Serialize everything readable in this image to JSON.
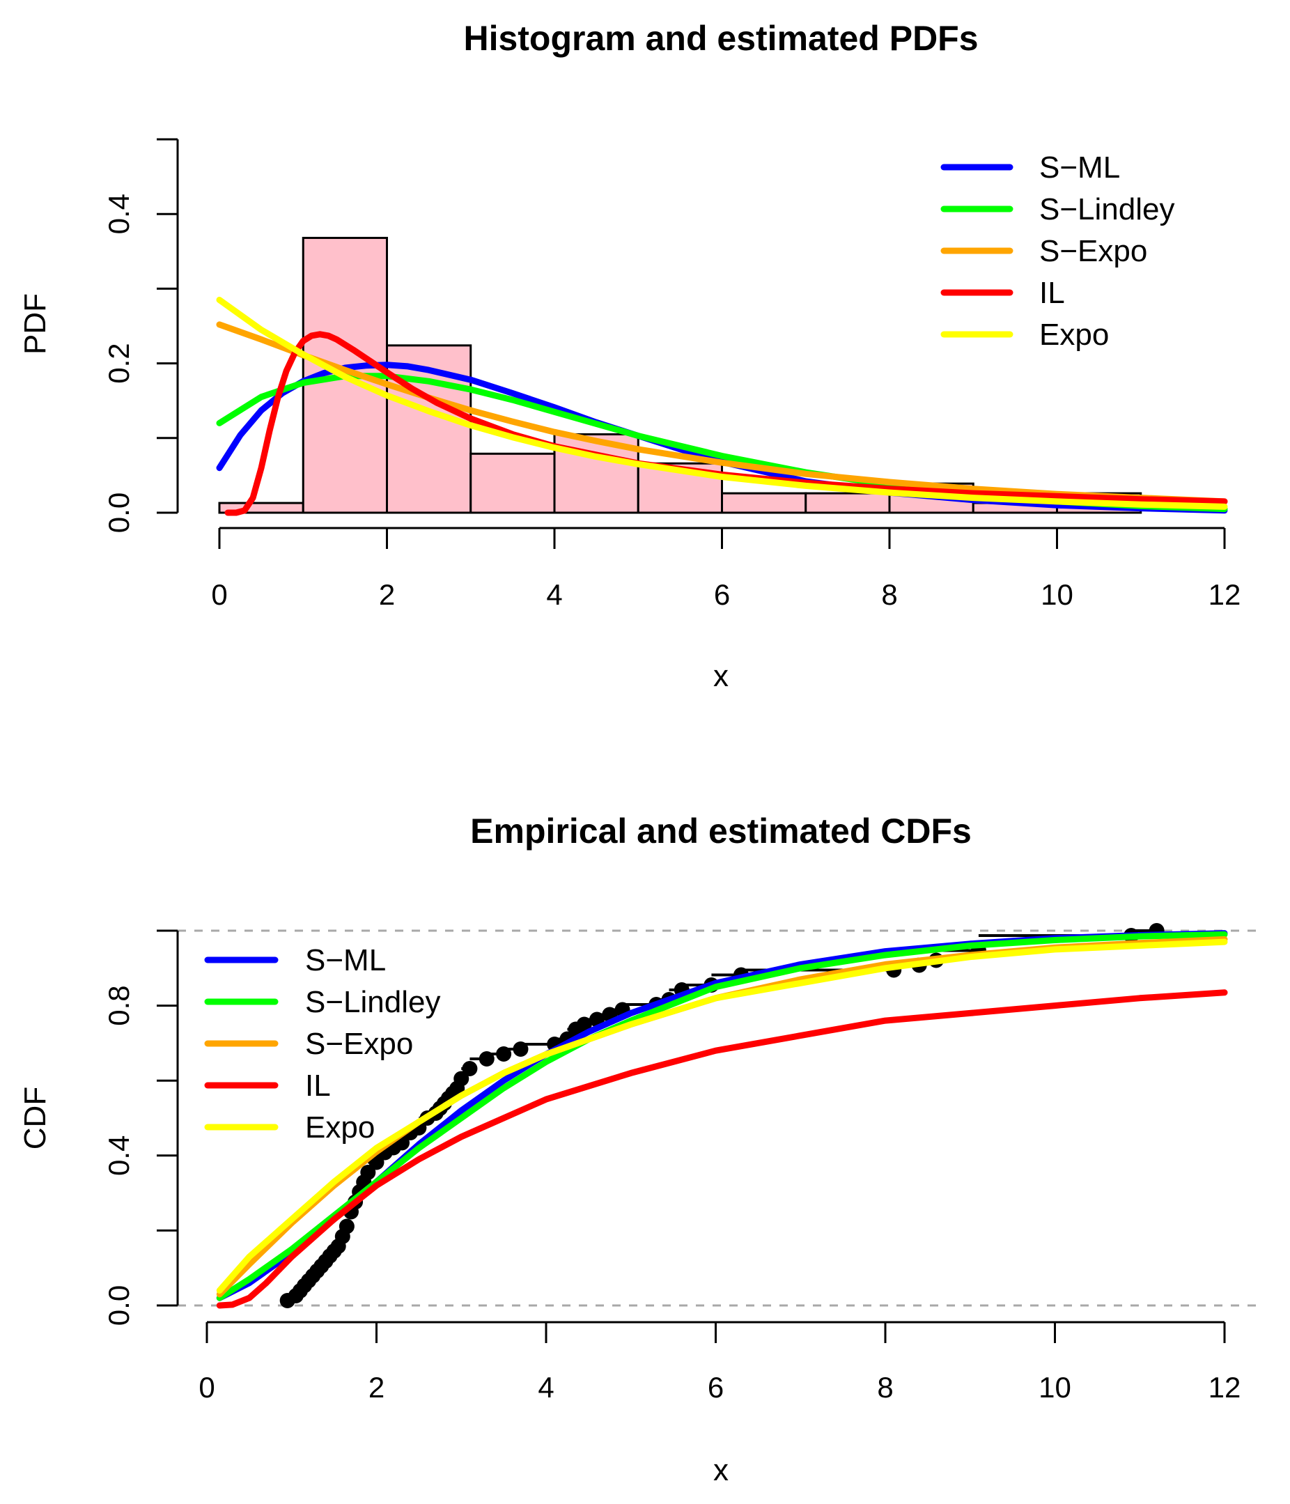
{
  "chart_data": [
    {
      "type": "histogram+line",
      "title": "Histogram and estimated PDFs",
      "xlabel": "x",
      "ylabel": "PDF",
      "xlim": [
        0,
        12
      ],
      "ylim": [
        0,
        0.5
      ],
      "xticks": [
        "0",
        "2",
        "4",
        "6",
        "8",
        "10",
        "12"
      ],
      "yticks": [
        "0.0",
        "0.2",
        "0.4"
      ],
      "histogram": {
        "bin_edges": [
          0,
          1,
          2,
          3,
          4,
          5,
          6,
          7,
          8,
          9,
          10,
          11
        ],
        "density": [
          0.013,
          0.368,
          0.224,
          0.079,
          0.105,
          0.066,
          0.026,
          0.026,
          0.039,
          0.013,
          0.026
        ],
        "fill": "#ffc0cb",
        "stroke": "#000000"
      },
      "legend_position": "top-right",
      "series": [
        {
          "name": "S−ML",
          "color": "#0000ff",
          "x": [
            0,
            0.25,
            0.5,
            0.75,
            1,
            1.25,
            1.5,
            1.75,
            2,
            2.25,
            2.5,
            3,
            3.5,
            4,
            4.5,
            5,
            5.5,
            6,
            7,
            8,
            9,
            10,
            11,
            12
          ],
          "y": [
            0.06,
            0.104,
            0.137,
            0.16,
            0.176,
            0.187,
            0.194,
            0.197,
            0.198,
            0.196,
            0.191,
            0.178,
            0.16,
            0.141,
            0.121,
            0.103,
            0.085,
            0.068,
            0.042,
            0.027,
            0.017,
            0.01,
            0.006,
            0.003
          ]
        },
        {
          "name": "S−Lindley",
          "color": "#00ff00",
          "x": [
            0,
            0.5,
            1,
            1.5,
            2,
            2.5,
            3,
            3.5,
            4,
            4.5,
            5,
            6,
            7,
            8,
            9,
            10,
            11,
            12
          ],
          "y": [
            0.12,
            0.155,
            0.174,
            0.183,
            0.183,
            0.176,
            0.165,
            0.151,
            0.135,
            0.119,
            0.103,
            0.076,
            0.054,
            0.037,
            0.024,
            0.015,
            0.009,
            0.005
          ]
        },
        {
          "name": "S−Expo",
          "color": "#ffa500",
          "x": [
            0,
            0.5,
            1,
            1.5,
            2,
            2.5,
            3,
            3.5,
            4,
            4.5,
            5,
            6,
            7,
            8,
            9,
            10,
            11,
            12
          ],
          "y": [
            0.252,
            0.232,
            0.211,
            0.191,
            0.172,
            0.154,
            0.137,
            0.122,
            0.108,
            0.096,
            0.085,
            0.067,
            0.052,
            0.041,
            0.032,
            0.025,
            0.02,
            0.015
          ]
        },
        {
          "name": "IL",
          "color": "#ff0000",
          "x": [
            0.1,
            0.2,
            0.3,
            0.4,
            0.5,
            0.6,
            0.7,
            0.8,
            0.9,
            1.0,
            1.1,
            1.2,
            1.3,
            1.4,
            1.6,
            1.8,
            2.0,
            2.3,
            2.6,
            3.0,
            3.5,
            4,
            5,
            6,
            7,
            8,
            9,
            10,
            11,
            12
          ],
          "y": [
            0.0,
            0.0,
            0.003,
            0.02,
            0.06,
            0.11,
            0.155,
            0.19,
            0.214,
            0.23,
            0.237,
            0.239,
            0.237,
            0.232,
            0.218,
            0.203,
            0.188,
            0.166,
            0.147,
            0.126,
            0.105,
            0.089,
            0.066,
            0.051,
            0.04,
            0.032,
            0.026,
            0.022,
            0.018,
            0.015
          ]
        },
        {
          "name": "Expo",
          "color": "#ffff00",
          "x": [
            0,
            0.5,
            1,
            1.5,
            2,
            2.5,
            3,
            3.5,
            4,
            4.5,
            5,
            6,
            7,
            8,
            9,
            10,
            11,
            12
          ],
          "y": [
            0.285,
            0.245,
            0.212,
            0.182,
            0.157,
            0.136,
            0.117,
            0.101,
            0.087,
            0.075,
            0.065,
            0.048,
            0.036,
            0.027,
            0.02,
            0.015,
            0.011,
            0.008
          ]
        }
      ]
    },
    {
      "type": "line+scatter",
      "title": "Empirical and estimated CDFs",
      "xlabel": "x",
      "ylabel": "CDF",
      "xlim": [
        0,
        12
      ],
      "ylim": [
        0,
        1
      ],
      "xticks": [
        "0",
        "2",
        "4",
        "6",
        "8",
        "10",
        "12"
      ],
      "yticks": [
        "0.0",
        "0.4",
        "0.8"
      ],
      "reference_lines": [
        0,
        1
      ],
      "legend_position": "top-left",
      "empirical_points": {
        "x": [
          0.95,
          1.05,
          1.1,
          1.15,
          1.2,
          1.25,
          1.3,
          1.35,
          1.4,
          1.45,
          1.5,
          1.55,
          1.6,
          1.65,
          1.7,
          1.75,
          1.8,
          1.85,
          1.9,
          2.0,
          2.1,
          2.2,
          2.3,
          2.4,
          2.5,
          2.6,
          2.7,
          2.75,
          2.8,
          2.85,
          2.9,
          2.95,
          3.0,
          3.1,
          3.3,
          3.5,
          3.7,
          4.1,
          4.25,
          4.35,
          4.45,
          4.6,
          4.75,
          4.9,
          5.3,
          5.45,
          5.6,
          5.95,
          6.3,
          8.1,
          8.4,
          8.6,
          9.1,
          10.9,
          11.2
        ],
        "y": [
          0.013,
          0.026,
          0.039,
          0.053,
          0.066,
          0.079,
          0.092,
          0.105,
          0.118,
          0.132,
          0.145,
          0.158,
          0.184,
          0.211,
          0.25,
          0.276,
          0.303,
          0.329,
          0.355,
          0.382,
          0.408,
          0.421,
          0.434,
          0.461,
          0.474,
          0.5,
          0.513,
          0.526,
          0.539,
          0.553,
          0.566,
          0.579,
          0.605,
          0.632,
          0.658,
          0.671,
          0.684,
          0.697,
          0.711,
          0.737,
          0.75,
          0.763,
          0.776,
          0.789,
          0.803,
          0.816,
          0.842,
          0.855,
          0.882,
          0.895,
          0.908,
          0.921,
          0.947,
          0.987,
          1.0
        ]
      },
      "series": [
        {
          "name": "S−ML",
          "color": "#0000ff",
          "x": [
            0.15,
            0.5,
            1,
            1.5,
            2,
            2.5,
            3,
            3.5,
            4,
            4.5,
            5,
            6,
            7,
            8,
            9,
            10,
            11,
            12
          ],
          "y": [
            0.02,
            0.06,
            0.14,
            0.23,
            0.33,
            0.43,
            0.52,
            0.6,
            0.67,
            0.73,
            0.78,
            0.86,
            0.91,
            0.945,
            0.965,
            0.98,
            0.988,
            0.993
          ]
        },
        {
          "name": "S−Lindley",
          "color": "#00ff00",
          "x": [
            0.15,
            0.5,
            1,
            1.5,
            2,
            2.5,
            3,
            3.5,
            4,
            4.5,
            5,
            6,
            7,
            8,
            9,
            10,
            11,
            12
          ],
          "y": [
            0.02,
            0.07,
            0.15,
            0.24,
            0.33,
            0.42,
            0.5,
            0.58,
            0.65,
            0.71,
            0.76,
            0.85,
            0.9,
            0.935,
            0.96,
            0.975,
            0.985,
            0.99
          ]
        },
        {
          "name": "S−Expo",
          "color": "#ffa500",
          "x": [
            0.15,
            0.5,
            1,
            1.5,
            2,
            2.5,
            3,
            3.5,
            4,
            4.5,
            5,
            6,
            7,
            8,
            9,
            10,
            11,
            12
          ],
          "y": [
            0.03,
            0.11,
            0.22,
            0.32,
            0.41,
            0.49,
            0.56,
            0.62,
            0.67,
            0.71,
            0.75,
            0.82,
            0.87,
            0.91,
            0.935,
            0.955,
            0.967,
            0.977
          ]
        },
        {
          "name": "IL",
          "color": "#ff0000",
          "x": [
            0.15,
            0.3,
            0.5,
            0.7,
            1,
            1.5,
            2,
            2.5,
            3,
            3.5,
            4,
            5,
            6,
            7,
            8,
            9,
            10,
            11,
            12
          ],
          "y": [
            0.0,
            0.002,
            0.02,
            0.06,
            0.13,
            0.23,
            0.32,
            0.39,
            0.45,
            0.5,
            0.55,
            0.62,
            0.68,
            0.72,
            0.76,
            0.78,
            0.8,
            0.82,
            0.835
          ]
        },
        {
          "name": "Expo",
          "color": "#ffff00",
          "x": [
            0.15,
            0.5,
            1,
            1.5,
            2,
            2.5,
            3,
            3.5,
            4,
            4.5,
            5,
            6,
            7,
            8,
            9,
            10,
            11,
            12
          ],
          "y": [
            0.04,
            0.13,
            0.23,
            0.33,
            0.42,
            0.49,
            0.56,
            0.62,
            0.67,
            0.71,
            0.75,
            0.82,
            0.86,
            0.9,
            0.93,
            0.95,
            0.96,
            0.97
          ]
        }
      ]
    }
  ]
}
